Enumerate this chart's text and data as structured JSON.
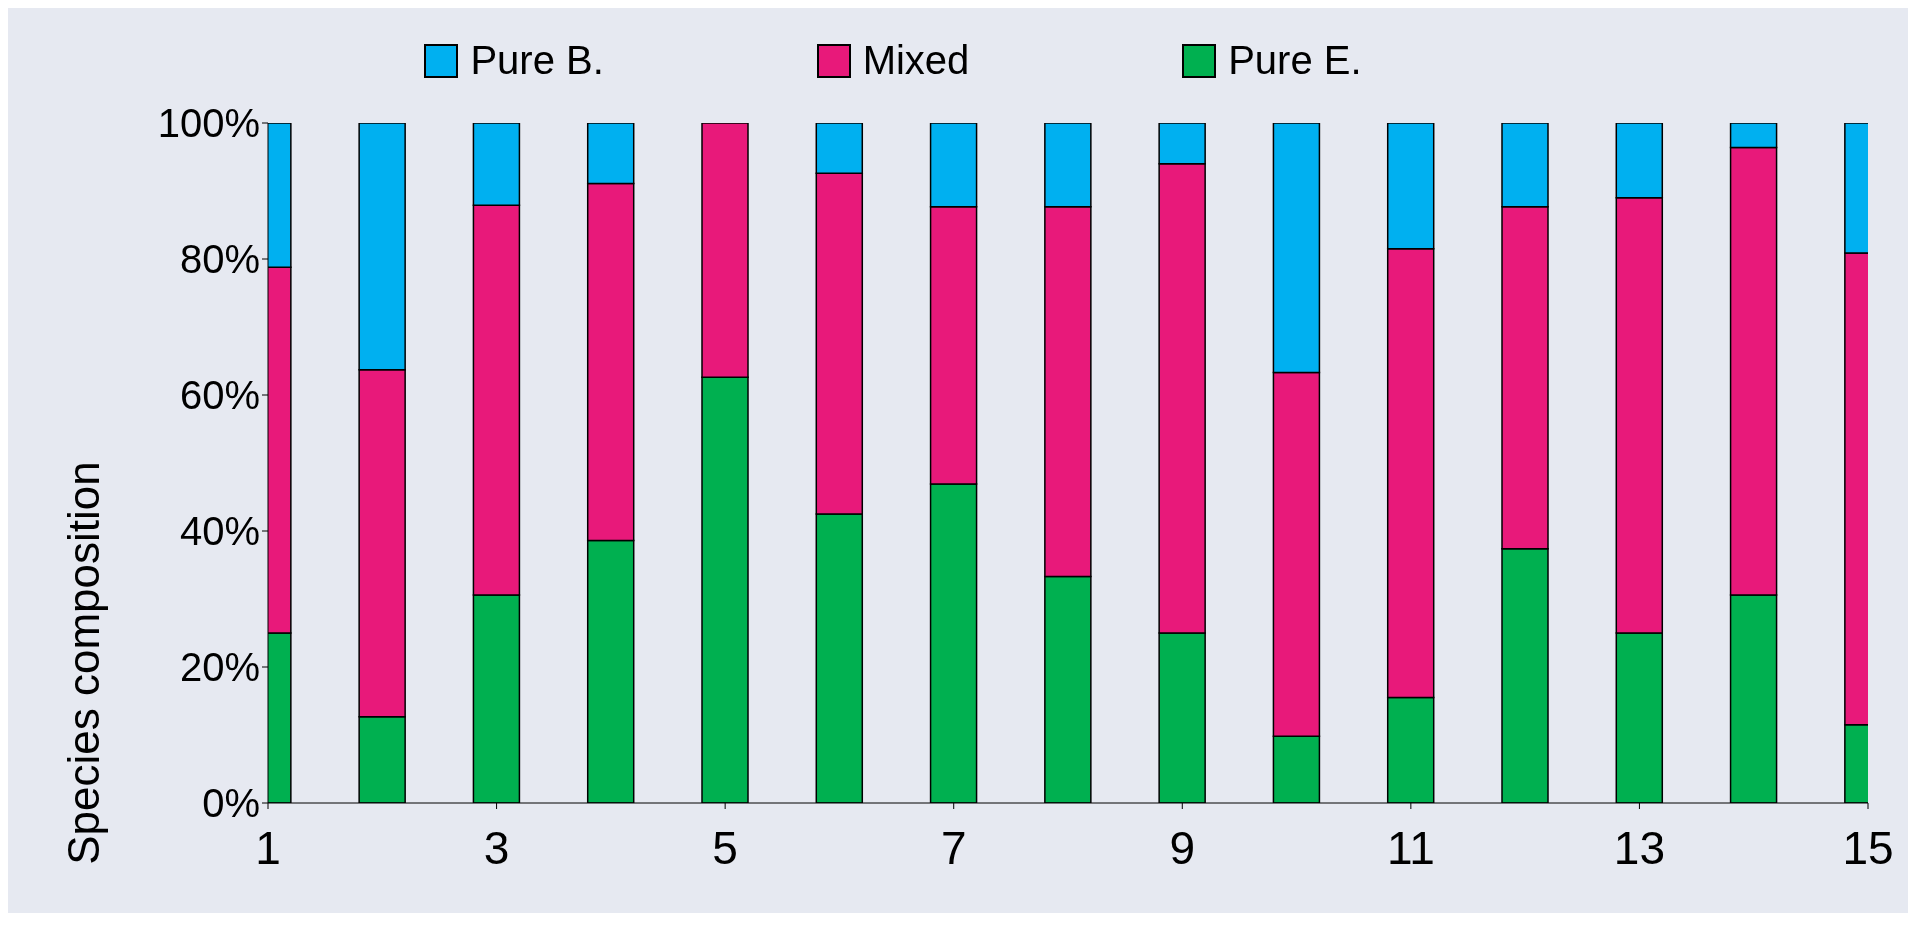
{
  "chart_data": {
    "type": "bar",
    "stacked": true,
    "ylabel": "Species composition",
    "x": [
      1,
      2,
      3,
      4,
      5,
      6,
      7,
      8,
      9,
      10,
      11,
      12,
      13,
      14,
      15
    ],
    "xlim": [
      1,
      15
    ],
    "xticks": [
      1,
      3,
      5,
      7,
      9,
      11,
      13,
      15
    ],
    "series": [
      {
        "name": "Pure E.",
        "color": "#00b050",
        "values": [
          25,
          12.7,
          30.6,
          38.6,
          62.6,
          42.5,
          46.9,
          33.3,
          25,
          9.8,
          15.5,
          37.4,
          25,
          30.6,
          11.5
        ]
      },
      {
        "name": "Mixed",
        "color": "#e8197a",
        "values": [
          53.8,
          51,
          57.3,
          52.5,
          37.4,
          50.1,
          40.8,
          54.4,
          69,
          53.5,
          66,
          50.3,
          64,
          65.8,
          69.4
        ]
      },
      {
        "name": "Pure B.",
        "color": "#00b0f0",
        "values": [
          21.2,
          36.3,
          12.1,
          8.9,
          0,
          7.4,
          12.3,
          12.3,
          6,
          36.7,
          18.5,
          12.3,
          11,
          3.6,
          19.1
        ]
      }
    ],
    "ylim": [
      0,
      100
    ],
    "yticks": [
      {
        "value": 0,
        "label": "0%"
      },
      {
        "value": 20,
        "label": "20%"
      },
      {
        "value": 40,
        "label": "40%"
      },
      {
        "value": 60,
        "label": "60%"
      },
      {
        "value": 80,
        "label": "80%"
      },
      {
        "value": 100,
        "label": "100%"
      }
    ],
    "grid": false,
    "legend": "top"
  }
}
